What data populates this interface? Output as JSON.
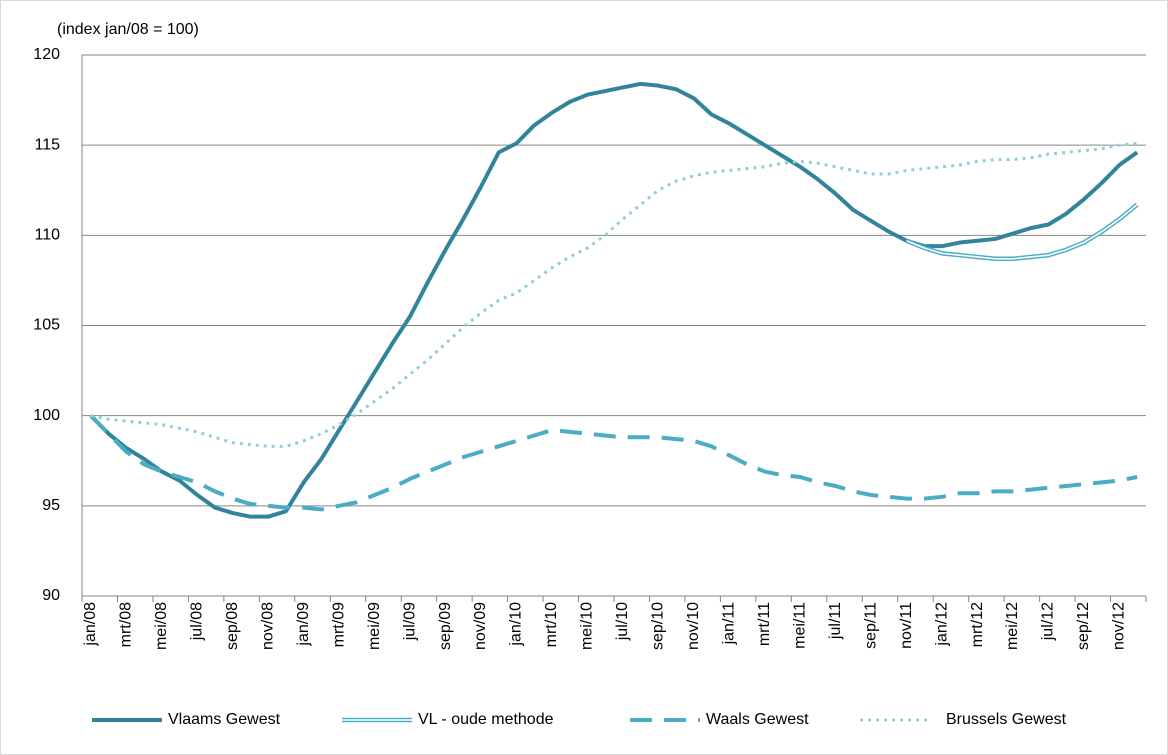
{
  "chart_data": {
    "type": "line",
    "annotation": "(index jan/08 = 100)",
    "categories": [
      "jan/08",
      null,
      "mrt/08",
      null,
      "mei/08",
      null,
      "jul/08",
      null,
      "sep/08",
      null,
      "nov/08",
      null,
      "jan/09",
      null,
      "mrt/09",
      null,
      "mei/09",
      null,
      "jul/09",
      null,
      "sep/09",
      null,
      "nov/09",
      null,
      "jan/10",
      null,
      "mrt/10",
      null,
      "mei/10",
      null,
      "jul/10",
      null,
      "sep/10",
      null,
      "nov/10",
      null,
      "jan/11",
      null,
      "mrt/11",
      null,
      "mei/11",
      null,
      "jul/11",
      null,
      "sep/11",
      null,
      "nov/11",
      null,
      "jan/12",
      null,
      "mrt/12",
      null,
      "mei/12",
      null,
      "jul/12",
      null,
      "sep/12",
      null,
      "nov/12",
      null
    ],
    "series": [
      {
        "name": "Vlaams Gewest",
        "color": "#31849b",
        "style": "solid",
        "values": [
          100,
          99.0,
          98.2,
          97.6,
          96.9,
          96.4,
          95.6,
          94.9,
          94.6,
          94.4,
          94.4,
          94.7,
          96.3,
          97.6,
          99.2,
          100.8,
          102.4,
          104.0,
          105.5,
          107.4,
          109.2,
          110.9,
          112.7,
          114.6,
          115.1,
          116.1,
          116.8,
          117.4,
          117.8,
          118.0,
          118.2,
          118.4,
          118.3,
          118.1,
          117.6,
          116.7,
          116.2,
          115.6,
          115.0,
          114.4,
          113.8,
          113.1,
          112.3,
          111.4,
          110.8,
          110.2,
          109.7,
          109.4,
          109.4,
          109.6,
          109.7,
          109.8,
          110.1,
          110.4,
          110.6,
          111.2,
          112.0,
          112.9,
          113.9,
          114.6
        ]
      },
      {
        "name": "VL - oude methode",
        "color": "#4bacc6",
        "style": "double",
        "values": [
          null,
          null,
          null,
          null,
          null,
          null,
          null,
          null,
          null,
          null,
          null,
          null,
          null,
          null,
          null,
          null,
          null,
          null,
          null,
          null,
          null,
          null,
          null,
          null,
          null,
          null,
          null,
          null,
          null,
          null,
          null,
          null,
          null,
          null,
          null,
          null,
          null,
          null,
          null,
          null,
          null,
          null,
          null,
          null,
          null,
          null,
          109.7,
          109.3,
          109.0,
          108.9,
          108.8,
          108.7,
          108.7,
          108.8,
          108.9,
          109.2,
          109.6,
          110.2,
          110.9,
          111.7
        ]
      },
      {
        "name": "Waals Gewest",
        "color": "#4bacc6",
        "style": "dashed",
        "values": [
          100,
          99.0,
          98.0,
          97.3,
          96.9,
          96.6,
          96.3,
          95.8,
          95.4,
          95.1,
          95.0,
          94.9,
          94.9,
          94.8,
          95.0,
          95.2,
          95.6,
          96.0,
          96.5,
          96.9,
          97.3,
          97.7,
          98.0,
          98.3,
          98.6,
          98.9,
          99.2,
          99.1,
          99.0,
          98.9,
          98.8,
          98.8,
          98.8,
          98.7,
          98.6,
          98.3,
          97.8,
          97.3,
          96.9,
          96.7,
          96.6,
          96.3,
          96.1,
          95.8,
          95.6,
          95.5,
          95.4,
          95.4,
          95.5,
          95.7,
          95.7,
          95.8,
          95.8,
          95.9,
          96.0,
          96.1,
          96.2,
          96.3,
          96.4,
          96.6
        ]
      },
      {
        "name": "Brussels Gewest",
        "color": "#92cddc",
        "style": "dotted",
        "values": [
          100,
          99.8,
          99.7,
          99.6,
          99.5,
          99.3,
          99.1,
          98.8,
          98.5,
          98.4,
          98.3,
          98.3,
          98.6,
          99.0,
          99.5,
          100.1,
          100.8,
          101.5,
          102.3,
          103.1,
          104.0,
          104.9,
          105.7,
          106.4,
          106.8,
          107.5,
          108.2,
          108.8,
          109.3,
          110.0,
          110.9,
          111.7,
          112.5,
          113.0,
          113.3,
          113.5,
          113.6,
          113.7,
          113.8,
          114.0,
          114.1,
          114.0,
          113.8,
          113.6,
          113.4,
          113.4,
          113.6,
          113.7,
          113.8,
          113.9,
          114.1,
          114.2,
          114.2,
          114.3,
          114.5,
          114.6,
          114.7,
          114.8,
          115.0,
          115.1
        ]
      }
    ],
    "ylim": [
      90,
      120
    ],
    "yticks": [
      90,
      95,
      100,
      105,
      110,
      115,
      120
    ],
    "grid": true,
    "legend": "bottom"
  }
}
